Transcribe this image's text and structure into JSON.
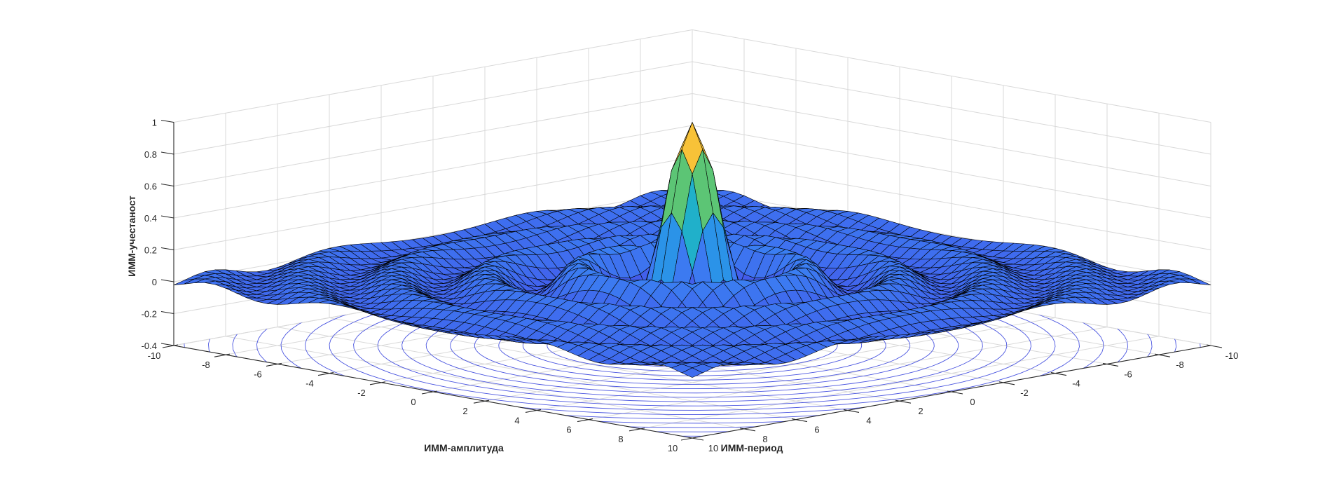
{
  "chart_data": {
    "type": "surface",
    "title": "",
    "xlabel": "ИММ-амплитуда",
    "ylabel": "ИММ-период",
    "zlabel": "ИММ-учестаност",
    "xlim": [
      -10,
      10
    ],
    "ylim": [
      -10,
      10
    ],
    "zlim": [
      -0.4,
      1
    ],
    "xticks": [
      "-10",
      "-8",
      "-6",
      "-4",
      "-2",
      "0",
      "2",
      "4",
      "6",
      "8",
      "10"
    ],
    "yticks": [
      "-10",
      "-8",
      "-6",
      "-4",
      "-2",
      "0",
      "2",
      "4",
      "6",
      "8",
      "10"
    ],
    "zticks": [
      "-0.4",
      "-0.2",
      "0",
      "0.2",
      "0.4",
      "0.6",
      "0.8",
      "1"
    ],
    "grid": true,
    "surface": {
      "shape": "radial sinc, z = sin(R)/R",
      "peak": {
        "x": 0,
        "y": 0,
        "z": 1
      },
      "first_ring_min_z": -0.22,
      "edge_z": 0
    },
    "contours_on_floor": true,
    "colormap": [
      "#4848e8",
      "#3a80f2",
      "#1aa8dc",
      "#2cc0a8",
      "#80c850",
      "#f8b840",
      "#f8f010"
    ],
    "edge_color": "#000000",
    "contour_color": "#4a55e0"
  }
}
